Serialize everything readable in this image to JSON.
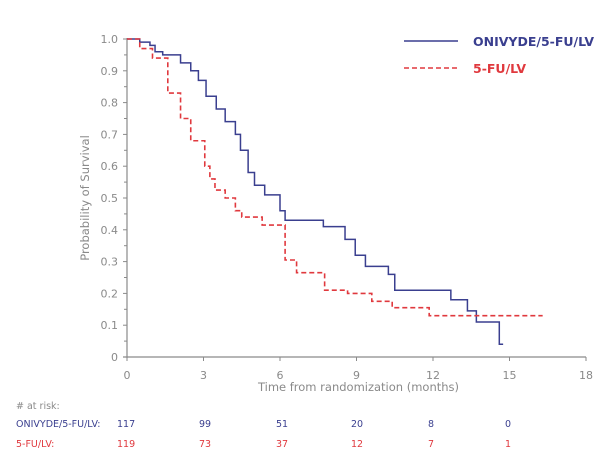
{
  "chart_data": {
    "type": "line",
    "title": "",
    "xlabel": "Time from randomization (months)",
    "ylabel": "Probability of Survival",
    "xlim": [
      0,
      18
    ],
    "ylim": [
      0,
      1.0
    ],
    "x_ticks": [
      "0",
      "3",
      "6",
      "9",
      "12",
      "15",
      "18"
    ],
    "y_ticks": [
      "0",
      "0.1",
      "0.2",
      "0.3",
      "0.4",
      "0.5",
      "0.6",
      "0.7",
      "0.8",
      "0.9",
      "1.0"
    ],
    "grid": false,
    "legend_position": "top-right",
    "step": true,
    "series": [
      {
        "name": "ONIVYDE/5-FU/LV",
        "color": "#3a3f8f",
        "style": "solid",
        "points": [
          [
            0,
            1.0
          ],
          [
            0.5,
            0.99
          ],
          [
            0.9,
            0.98
          ],
          [
            1.1,
            0.96
          ],
          [
            1.4,
            0.95
          ],
          [
            2.1,
            0.925
          ],
          [
            2.5,
            0.9
          ],
          [
            2.8,
            0.87
          ],
          [
            3.1,
            0.82
          ],
          [
            3.5,
            0.78
          ],
          [
            3.85,
            0.74
          ],
          [
            4.25,
            0.7
          ],
          [
            4.45,
            0.65
          ],
          [
            4.75,
            0.58
          ],
          [
            5.0,
            0.54
          ],
          [
            5.4,
            0.51
          ],
          [
            6.0,
            0.46
          ],
          [
            6.2,
            0.43
          ],
          [
            7.7,
            0.41
          ],
          [
            8.55,
            0.37
          ],
          [
            8.95,
            0.32
          ],
          [
            9.35,
            0.285
          ],
          [
            10.25,
            0.26
          ],
          [
            10.5,
            0.21
          ],
          [
            12.7,
            0.18
          ],
          [
            13.35,
            0.145
          ],
          [
            13.7,
            0.11
          ],
          [
            14.6,
            0.04
          ],
          [
            14.75,
            0.04
          ]
        ]
      },
      {
        "name": "5-FU/LV",
        "color": "#e0393e",
        "style": "dashed",
        "points": [
          [
            0,
            1.0
          ],
          [
            0.5,
            0.97
          ],
          [
            1.0,
            0.94
          ],
          [
            1.6,
            0.83
          ],
          [
            2.1,
            0.75
          ],
          [
            2.5,
            0.68
          ],
          [
            3.05,
            0.6
          ],
          [
            3.25,
            0.56
          ],
          [
            3.45,
            0.525
          ],
          [
            3.85,
            0.5
          ],
          [
            4.25,
            0.46
          ],
          [
            4.5,
            0.44
          ],
          [
            5.3,
            0.415
          ],
          [
            6.2,
            0.305
          ],
          [
            6.65,
            0.265
          ],
          [
            7.75,
            0.21
          ],
          [
            8.65,
            0.2
          ],
          [
            9.6,
            0.175
          ],
          [
            10.4,
            0.155
          ],
          [
            11.85,
            0.13
          ],
          [
            16.3,
            0.13
          ]
        ]
      }
    ],
    "at_risk": {
      "header": "# at risk:",
      "times": [
        0,
        3,
        6,
        9,
        12,
        15
      ],
      "rows": [
        {
          "label": "ONIVYDE/5-FU/LV:",
          "values": [
            "117",
            "99",
            "51",
            "20",
            "8",
            "0"
          ]
        },
        {
          "label": "5-FU/LV:",
          "values": [
            "119",
            "73",
            "37",
            "12",
            "7",
            "1"
          ]
        }
      ]
    }
  }
}
